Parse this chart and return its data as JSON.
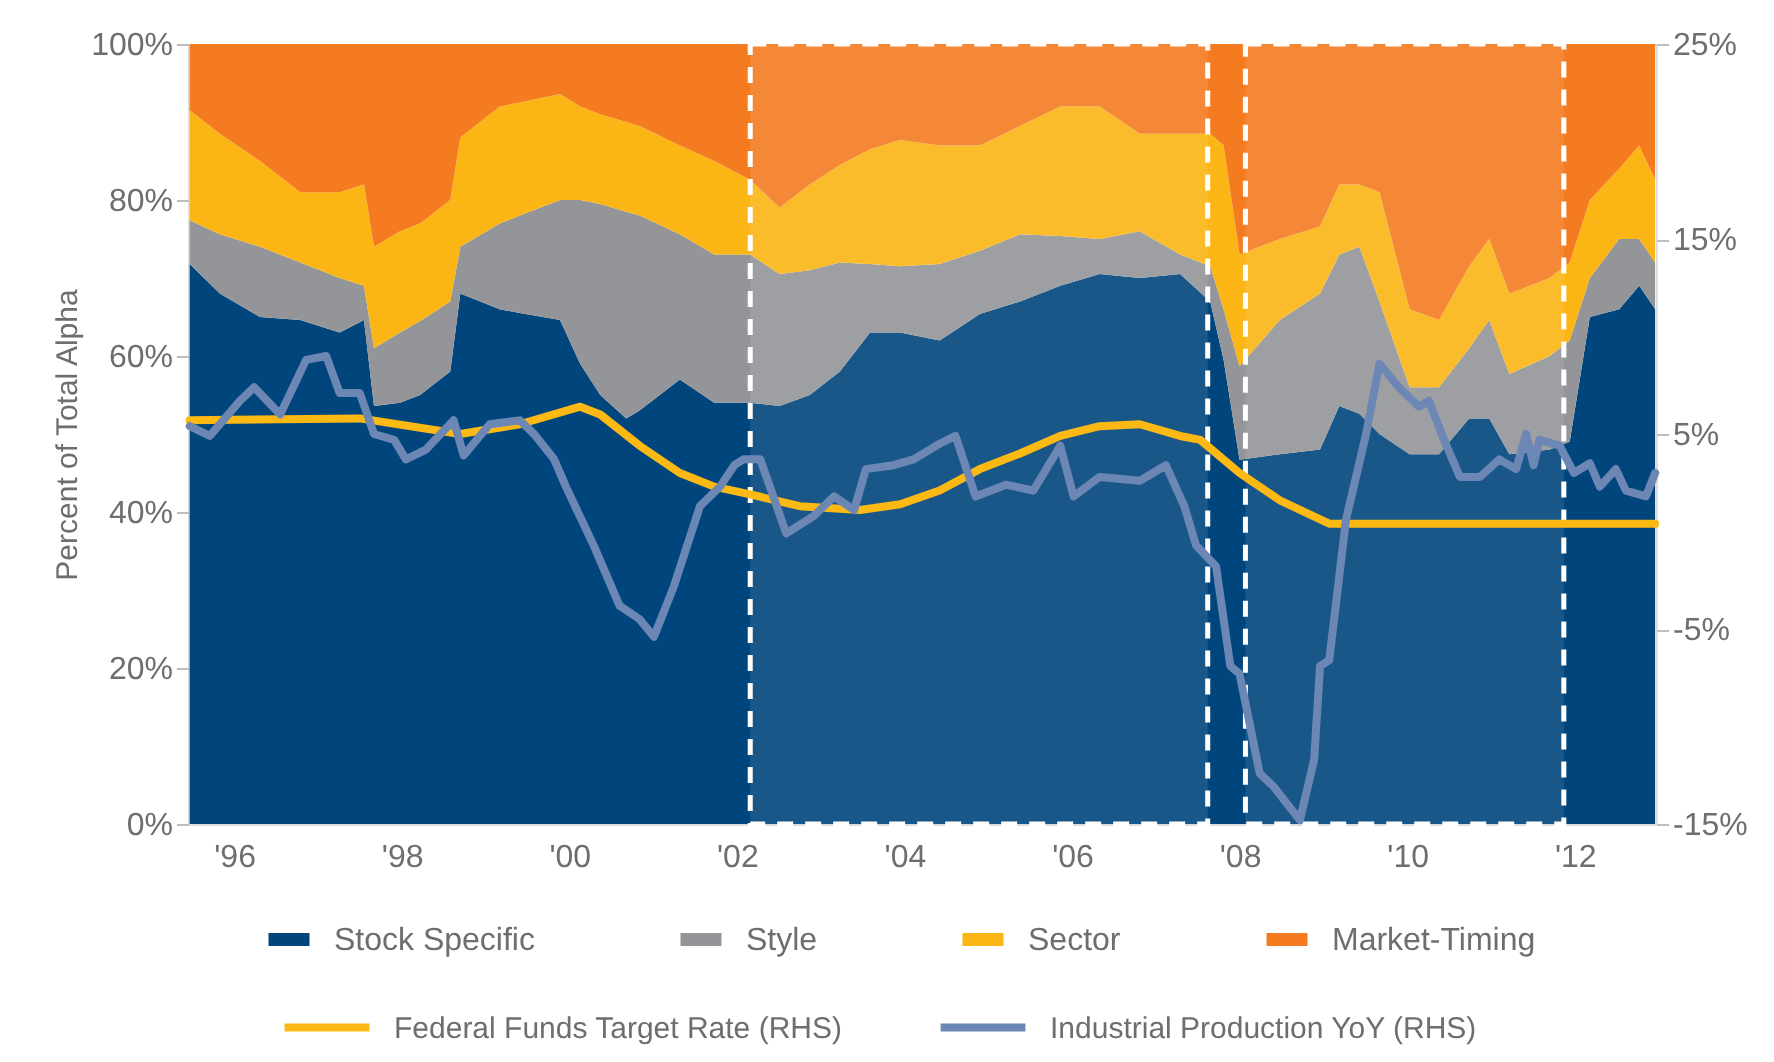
{
  "chart_data": {
    "type": "area",
    "stacked": true,
    "ylabel": "Percent of Total Alpha",
    "legend": "bottom",
    "grid": false,
    "x": [
      1995.47,
      1995.83,
      1996.31,
      1996.79,
      1997.26,
      1997.55,
      1997.67,
      1997.98,
      1998.22,
      1998.58,
      1998.7,
      1999.17,
      1999.41,
      1999.89,
      2000.13,
      2000.37,
      2000.68,
      2000.84,
      2001.32,
      2001.73,
      2002.16,
      2002.51,
      2002.87,
      2003.23,
      2003.59,
      2003.95,
      2004.42,
      2004.9,
      2005.38,
      2005.86,
      2006.33,
      2006.81,
      2007.29,
      2007.65,
      2007.81,
      2008.0,
      2008.48,
      2008.96,
      2009.19,
      2009.43,
      2009.67,
      2010.03,
      2010.38,
      2010.74,
      2010.98,
      2011.22,
      2011.7,
      2011.94,
      2012.18,
      2012.53,
      2012.77,
      2012.96
    ],
    "xlim": [
      1995.45,
      2012.97
    ],
    "xticks": [
      {
        "value": 1996,
        "label": "'96"
      },
      {
        "value": 1998,
        "label": "'98"
      },
      {
        "value": 2000,
        "label": "'00"
      },
      {
        "value": 2002,
        "label": "'02"
      },
      {
        "value": 2004,
        "label": "'04"
      },
      {
        "value": 2006,
        "label": "'06"
      },
      {
        "value": 2008,
        "label": "'08"
      },
      {
        "value": 2010,
        "label": "'10"
      },
      {
        "value": 2012,
        "label": "'12"
      }
    ],
    "ylim": [
      0,
      100
    ],
    "yticks": [
      {
        "value": 0,
        "label": "0%"
      },
      {
        "value": 20,
        "label": "20%"
      },
      {
        "value": 40,
        "label": "40%"
      },
      {
        "value": 60,
        "label": "60%"
      },
      {
        "value": 80,
        "label": "80%"
      },
      {
        "value": 100,
        "label": "100%"
      }
    ],
    "y2lim": [
      -15,
      25
    ],
    "y2ticks": [
      {
        "value": -15,
        "label": "-15%"
      },
      {
        "value": -5,
        "label": "-5%"
      },
      {
        "value": 5,
        "label": "5%"
      },
      {
        "value": 15,
        "label": "15%"
      },
      {
        "value": 25,
        "label": "25%"
      }
    ],
    "series": [
      {
        "name": "Stock Specific",
        "color": "#00457c",
        "values": [
          71.8,
          68,
          65,
          64.6,
          63,
          64.6,
          53.6,
          54,
          55,
          58,
          68,
          66,
          65.5,
          64.6,
          59,
          55,
          52,
          53,
          57,
          54,
          54,
          53.6,
          55,
          58,
          63,
          63,
          62,
          65.4,
          67,
          69,
          70.5,
          70,
          70.5,
          67,
          59.5,
          46.7,
          47.4,
          48,
          53.6,
          52.6,
          50,
          47.4,
          47.4,
          52,
          52,
          47.4,
          48,
          49,
          65,
          66,
          69,
          66
        ]
      },
      {
        "name": "Style",
        "color": "#939598",
        "values": [
          5.6,
          7.6,
          9,
          7.4,
          7,
          4.4,
          7.4,
          9,
          9.5,
          9,
          6,
          11,
          12.5,
          15.4,
          21,
          24.5,
          26.5,
          25,
          18.6,
          19,
          19,
          16.9,
          16,
          14,
          8.8,
          8.5,
          9.8,
          8.1,
          8.6,
          6.4,
          4.5,
          6,
          2.5,
          4.5,
          6.5,
          12,
          17.2,
          20,
          19.4,
          21.4,
          17,
          8.6,
          8.6,
          9,
          12.6,
          10.3,
          12,
          13,
          5,
          9,
          6,
          6
        ]
      },
      {
        "name": "Sector",
        "color": "#fbb515",
        "values": [
          14.1,
          12.9,
          11,
          9,
          11,
          13,
          13,
          13,
          12.5,
          13,
          14,
          15,
          14.5,
          13.6,
          12,
          11.5,
          11.5,
          11.5,
          11.4,
          12,
          9.6,
          8.5,
          11,
          12.5,
          14.7,
          16.2,
          15.2,
          13.5,
          13.9,
          16.6,
          17,
          12.5,
          15.5,
          17,
          21,
          14.3,
          10.4,
          8.6,
          9,
          8,
          14,
          10,
          8.6,
          10.5,
          10.4,
          10.3,
          10,
          10,
          10,
          9,
          12,
          10.6
        ]
      },
      {
        "name": "Market-Timing",
        "color": "#f47b20",
        "values": [
          8.5,
          11.5,
          15,
          19,
          19,
          18,
          26,
          24,
          23,
          20,
          12,
          8,
          7.5,
          6.4,
          8,
          9,
          10,
          10.5,
          13,
          15,
          17.4,
          21,
          18,
          15.5,
          13.5,
          12.3,
          13,
          13,
          10.5,
          8,
          8,
          11.5,
          11.5,
          11.5,
          13,
          27,
          25,
          23.4,
          18,
          18,
          19,
          34,
          35.4,
          28.5,
          25,
          32,
          30,
          28,
          20,
          16,
          13,
          17.4
        ]
      },
      {
        "name": "Federal Funds Target Rate (RHS)",
        "type": "line",
        "axis": "y2",
        "color": "#fdb913",
        "x": [
          1995.47,
          1997.5,
          1998.7,
          1999.41,
          2000.13,
          2000.37,
          2000.84,
          2001.32,
          2001.73,
          2002.16,
          2002.75,
          2003.47,
          2003.95,
          2004.42,
          2004.9,
          2005.38,
          2005.86,
          2006.33,
          2006.81,
          2007.29,
          2007.53,
          2008.0,
          2008.48,
          2009.07,
          2012.96
        ],
        "values": [
          5.7,
          5.8,
          5.0,
          5.5,
          6.4,
          6.0,
          4.4,
          3.0,
          2.3,
          1.9,
          1.3,
          1.1,
          1.4,
          2.1,
          3.2,
          4.0,
          4.9,
          5.4,
          5.5,
          4.9,
          4.7,
          3.0,
          1.6,
          0.4,
          0.4
        ]
      },
      {
        "name": "Industrial Production YoY (RHS)",
        "type": "line",
        "axis": "y2",
        "color": "#6d87b5",
        "x": [
          1995.47,
          1995.71,
          1996.07,
          1996.24,
          1996.55,
          1996.86,
          1997.1,
          1997.26,
          1997.5,
          1997.67,
          1997.91,
          1998.05,
          1998.29,
          1998.62,
          1998.74,
          1999.05,
          1999.41,
          1999.58,
          1999.82,
          1999.96,
          2000.29,
          2000.6,
          2000.84,
          2001.01,
          2001.25,
          2001.56,
          2001.8,
          2001.97,
          2002.08,
          2002.28,
          2002.59,
          2002.92,
          2003.16,
          2003.4,
          2003.54,
          2003.87,
          2004.11,
          2004.42,
          2004.61,
          2004.85,
          2005.21,
          2005.54,
          2005.86,
          2006.02,
          2006.33,
          2006.81,
          2007.12,
          2007.34,
          2007.48,
          2007.72,
          2007.89,
          2008.0,
          2008.24,
          2008.41,
          2008.72,
          2008.89,
          2008.96,
          2009.07,
          2009.27,
          2009.51,
          2009.67,
          2009.9,
          2010.14,
          2010.26,
          2010.44,
          2010.63,
          2010.87,
          2011.1,
          2011.3,
          2011.42,
          2011.51,
          2011.58,
          2011.82,
          2011.99,
          2012.18,
          2012.3,
          2012.49,
          2012.61,
          2012.85,
          2012.96
        ],
        "values": [
          5.4,
          4.9,
          6.7,
          7.4,
          6.0,
          8.8,
          9.0,
          7.1,
          7.1,
          5.0,
          4.7,
          3.7,
          4.2,
          5.7,
          3.9,
          5.5,
          5.7,
          5.0,
          3.7,
          2.3,
          -0.7,
          -3.8,
          -4.5,
          -5.4,
          -2.8,
          1.3,
          2.3,
          3.4,
          3.7,
          3.7,
          -0.1,
          0.8,
          1.8,
          1.1,
          3.2,
          3.4,
          3.7,
          4.5,
          4.9,
          1.8,
          2.4,
          2.1,
          4.4,
          1.8,
          2.8,
          2.6,
          3.4,
          1.3,
          -0.7,
          -1.8,
          -6.9,
          -7.3,
          -12.4,
          -13.1,
          -14.8,
          -11.7,
          -6.9,
          -6.6,
          0.6,
          5.0,
          8.6,
          7.4,
          6.4,
          6.7,
          4.7,
          2.8,
          2.8,
          3.7,
          3.2,
          5.0,
          3.4,
          4.7,
          4.4,
          3.0,
          3.5,
          2.3,
          3.2,
          2.1,
          1.8,
          3.0
        ]
      }
    ],
    "bands": [
      {
        "axis": "x",
        "from": 2002.16,
        "to": 2007.62,
        "color": "#ffffff"
      },
      {
        "axis": "x",
        "from": 2008.07,
        "to": 2011.87,
        "color": "#ffffff"
      }
    ]
  }
}
